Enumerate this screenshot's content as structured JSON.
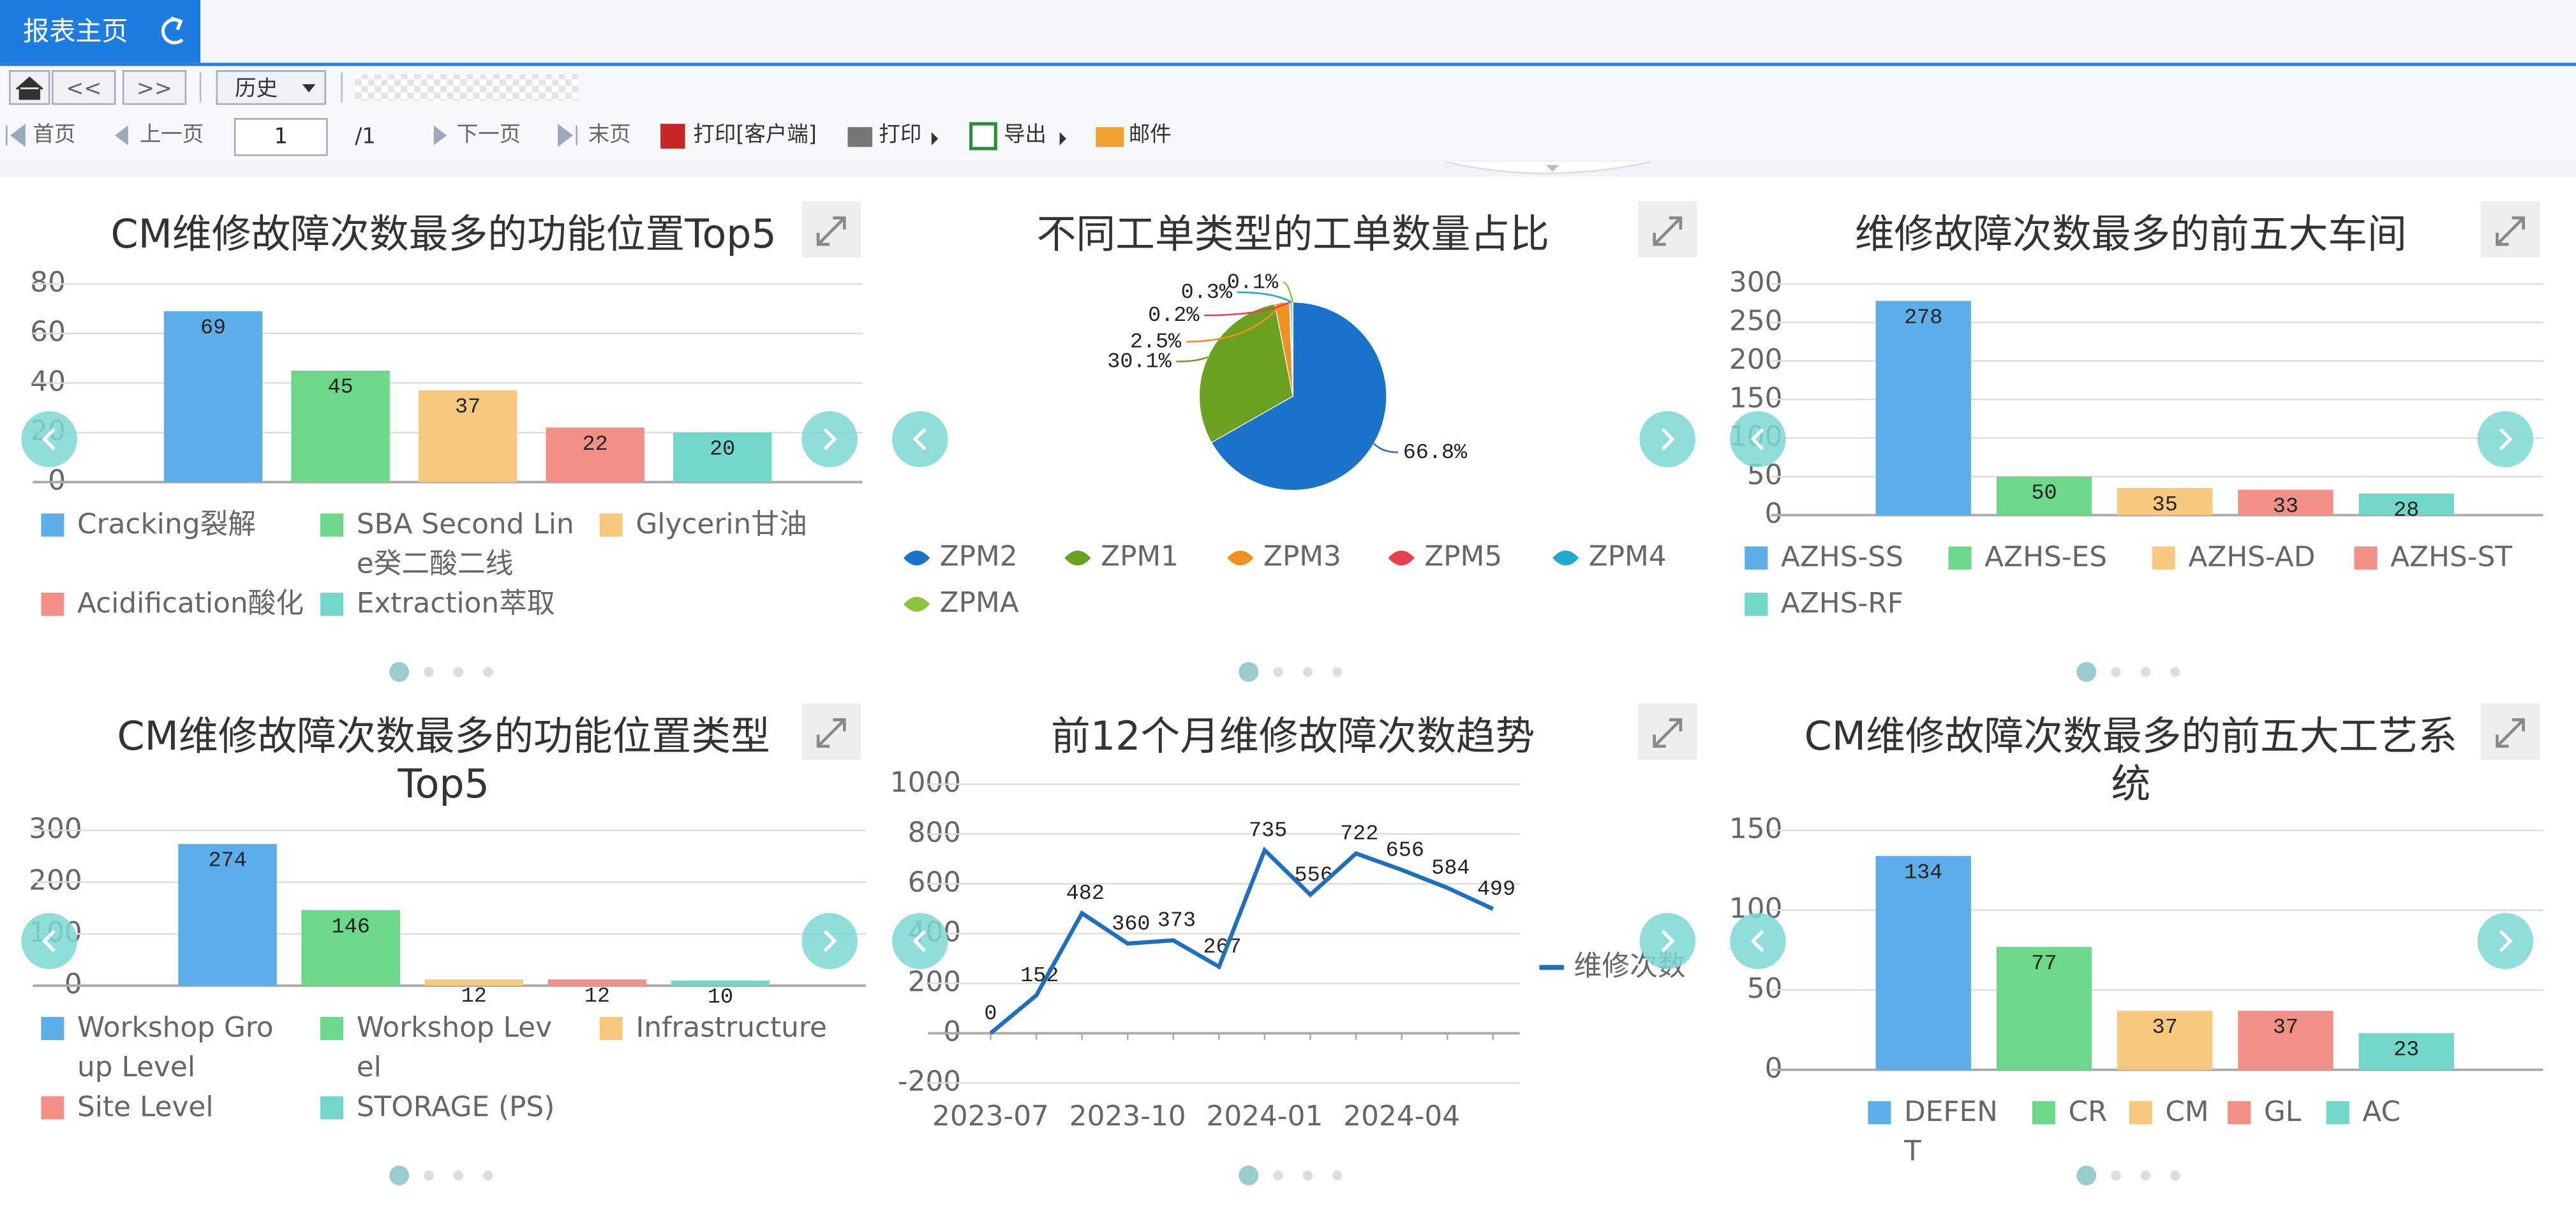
{
  "toolbar": {
    "tab": "报表主页",
    "nav": [
      "<<",
      ">>"
    ],
    "history": "历史",
    "pager": {
      "first": "首页",
      "prev": "上一页",
      "page": 1,
      "total": "/1",
      "next": "下一页",
      "last": "末页"
    },
    "actions": [
      "打印[客户端]",
      "打印",
      "导出",
      "邮件"
    ]
  },
  "chart_data": [
    {
      "type": "bar",
      "title": "CM维修故障次数最多的功能位置Top5",
      "categories": [
        "Cracking裂解",
        "SBA Second Line癸二酸二线",
        "Glycerin甘油",
        "Acidification酸化",
        "Extraction萃取"
      ],
      "values": [
        69,
        45,
        37,
        22,
        20
      ],
      "colors": [
        "#5dade8",
        "#6dd78a",
        "#f7c97e",
        "#f28f86",
        "#72d6c9"
      ],
      "ylim": [
        0,
        80
      ],
      "yticks": [
        0,
        20,
        40,
        60,
        80
      ],
      "grid": true
    },
    {
      "type": "pie",
      "title": "不同工单类型的工单数量占比",
      "categories": [
        "ZPM2",
        "ZPM1",
        "ZPM3",
        "ZPM5",
        "ZPM4",
        "ZPMA"
      ],
      "values": [
        66.8,
        30.1,
        2.5,
        0.2,
        0.3,
        0.1
      ],
      "value_labels": [
        "66.8%",
        "30.1%",
        "2.5%",
        "0.2%",
        "0.3%",
        "0.1%"
      ],
      "colors": [
        "#1a73c9",
        "#6aa121",
        "#f0901e",
        "#e8414c",
        "#20a9d0",
        "#8cc43f"
      ]
    },
    {
      "type": "bar",
      "title": "维修故障次数最多的前五大车间",
      "categories": [
        "AZHS-SS",
        "AZHS-ES",
        "AZHS-AD",
        "AZHS-ST",
        "AZHS-RF"
      ],
      "values": [
        278,
        50,
        35,
        33,
        28
      ],
      "colors": [
        "#5dade8",
        "#6dd78a",
        "#f7c97e",
        "#f28f86",
        "#72d6c9"
      ],
      "ylim": [
        0,
        300
      ],
      "yticks": [
        0,
        50,
        100,
        150,
        200,
        250,
        300
      ],
      "grid": true
    },
    {
      "type": "bar",
      "title": "CM维修故障次数最多的功能位置类型Top5",
      "categories": [
        "Workshop Group Level",
        "Workshop Level",
        "Infrastructure",
        "Site Level",
        "STORAGE (PS)"
      ],
      "values": [
        274,
        146,
        12,
        12,
        10
      ],
      "colors": [
        "#5dade8",
        "#6dd78a",
        "#f7c97e",
        "#f28f86",
        "#72d6c9"
      ],
      "ylim": [
        0,
        300
      ],
      "yticks": [
        0,
        100,
        200,
        300
      ],
      "grid": true
    },
    {
      "type": "line",
      "title": "前12个月维修故障次数趋势",
      "categories": [
        "2023-07",
        null,
        null,
        "2023-10",
        null,
        null,
        "2024-01",
        null,
        null,
        "2024-04",
        null,
        null
      ],
      "series": [
        {
          "name": "维修次数",
          "color": "#1f6fbf",
          "values": [
            0,
            152,
            482,
            360,
            373,
            267,
            735,
            556,
            722,
            656,
            584,
            499
          ]
        }
      ],
      "ylim": [
        -200,
        1000
      ],
      "yticks": [
        -200,
        0,
        200,
        400,
        600,
        800,
        1000
      ],
      "grid": true
    },
    {
      "type": "bar",
      "title": "CM维修故障次数最多的前五大工艺系统",
      "categories": [
        "DEFENT",
        "CR",
        "CM",
        "GL",
        "AC"
      ],
      "values": [
        134,
        77,
        37,
        37,
        23
      ],
      "colors": [
        "#5dade8",
        "#6dd78a",
        "#f7c97e",
        "#f28f86",
        "#72d6c9"
      ],
      "ylim": [
        0,
        150
      ],
      "yticks": [
        0,
        50,
        100,
        150
      ],
      "grid": true
    }
  ]
}
